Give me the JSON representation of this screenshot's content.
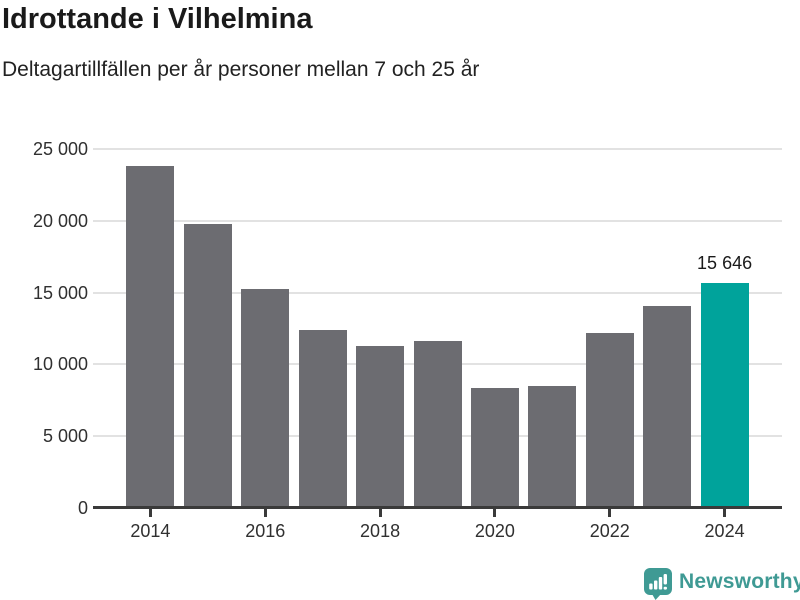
{
  "header": {
    "title": "Idrottande i Vilhelmina",
    "subtitle": "Deltagartillfällen per år personer mellan 7 och 25 år"
  },
  "chart_data": {
    "type": "bar",
    "title": "Idrottande i Vilhelmina",
    "subtitle": "Deltagartillfällen per år personer mellan 7 och 25 år",
    "xlabel": "",
    "ylabel": "",
    "categories": [
      "2014",
      "2015",
      "2016",
      "2017",
      "2018",
      "2019",
      "2020",
      "2021",
      "2022",
      "2023",
      "2024"
    ],
    "values": [
      23800,
      19800,
      15250,
      12400,
      11300,
      11620,
      8370,
      8520,
      12180,
      14060,
      15646
    ],
    "highlight_index": 10,
    "annotation": {
      "index": 10,
      "text": "15 646"
    },
    "ylim": [
      0,
      25000
    ],
    "yticks": [
      0,
      5000,
      10000,
      15000,
      20000,
      25000
    ],
    "ytick_labels": [
      "0",
      "5 000",
      "10 000",
      "15 000",
      "20 000",
      "25 000"
    ],
    "xticks_at": [
      0,
      2,
      4,
      6,
      8,
      10
    ],
    "xtick_labels": [
      "2014",
      "2016",
      "2018",
      "2020",
      "2022",
      "2024"
    ],
    "grid": "horizontal",
    "legend": "none",
    "colors": {
      "bar": "#6c6c71",
      "highlight": "#00a39b",
      "axis": "#3a3a3a",
      "gridline": "#e2e2e2",
      "text": "#1a1a1a"
    }
  },
  "footer": {
    "brand": "Newsworthy",
    "brand_color": "#3f9a94",
    "icon": "newsworthy-logo-icon"
  }
}
